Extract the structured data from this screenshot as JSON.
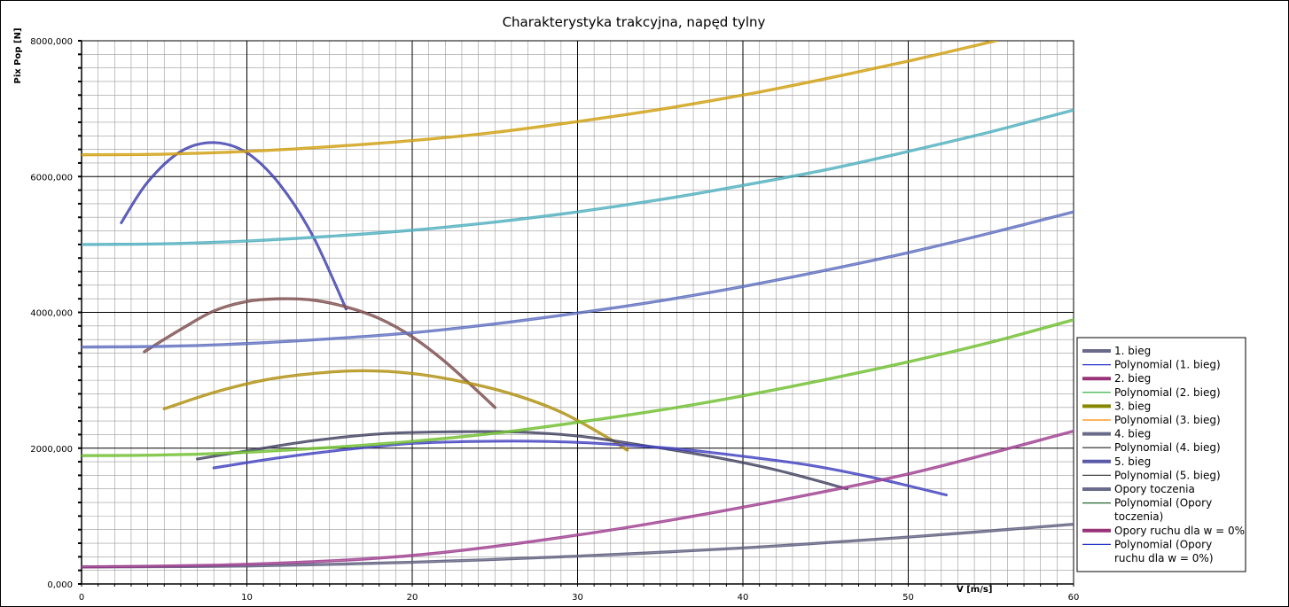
{
  "chart_data": {
    "type": "line",
    "title": "Charakterystyka trakcyjna, napęd tylny",
    "xlabel": "V [m/s]",
    "ylabel": "Pix Pop [N]",
    "xlim": [
      0,
      60
    ],
    "ylim": [
      0,
      8000
    ],
    "x_ticks": [
      0,
      10,
      20,
      30,
      40,
      50,
      60
    ],
    "y_ticks": [
      0,
      2000,
      4000,
      6000,
      8000
    ],
    "x_tick_labels": [
      "0",
      "10",
      "20",
      "30",
      "40",
      "50",
      "60"
    ],
    "y_tick_labels": [
      "0,000",
      "2000,000",
      "4000,000",
      "6000,000",
      "8000,000"
    ],
    "grid": true,
    "minor_grid": true,
    "legend_position": "right",
    "series": [
      {
        "name": "1. bieg",
        "color": "#3333aa",
        "width": 2.2,
        "x": [
          2.4,
          4,
          6,
          8,
          10,
          12,
          14,
          16
        ],
        "y": [
          5320,
          5920,
          6370,
          6500,
          6350,
          5880,
          5120,
          4050
        ]
      },
      {
        "name": "2. bieg",
        "color": "#774444",
        "width": 2.5,
        "x": [
          3.8,
          6,
          8,
          10,
          12,
          14,
          16,
          18,
          20,
          22,
          24,
          25
        ],
        "y": [
          3420,
          3750,
          4020,
          4160,
          4200,
          4180,
          4080,
          3910,
          3640,
          3270,
          2830,
          2600
        ]
      },
      {
        "name": "3. bieg",
        "color": "#aa8800",
        "width": 2.5,
        "x": [
          5,
          8,
          11,
          14,
          17,
          20,
          23,
          26,
          29,
          32,
          33
        ],
        "y": [
          2580,
          2820,
          3000,
          3100,
          3140,
          3100,
          2980,
          2800,
          2530,
          2130,
          1970
        ]
      },
      {
        "name": "4. bieg",
        "color": "#333355",
        "width": 2.2,
        "x": [
          7,
          10,
          14,
          18,
          22,
          26,
          30,
          34,
          38,
          42,
          46.3
        ],
        "y": [
          1840,
          1960,
          2110,
          2210,
          2240,
          2240,
          2180,
          2040,
          1880,
          1680,
          1400
        ]
      },
      {
        "name": "5. bieg",
        "color": "#3333bb",
        "width": 2.2,
        "x": [
          8,
          12,
          16,
          20,
          24,
          28,
          32,
          36,
          40,
          44,
          48,
          52.3
        ],
        "y": [
          1710,
          1860,
          1980,
          2070,
          2100,
          2100,
          2060,
          1990,
          1880,
          1750,
          1560,
          1310
        ]
      },
      {
        "name": "Opory toczenia",
        "color": "#555577",
        "width": 2.5,
        "x": [
          0,
          10,
          20,
          30,
          40,
          50,
          60
        ],
        "y": [
          250,
          265,
          320,
          410,
          530,
          690,
          880
        ]
      },
      {
        "name": "Opory ruchu dla w = 0%",
        "color": "#993388",
        "width": 2.5,
        "x": [
          0,
          10,
          20,
          30,
          40,
          50,
          60
        ],
        "y": [
          250,
          290,
          420,
          720,
          1130,
          1620,
          2250
        ]
      },
      {
        "name": "",
        "color": "#cc9900",
        "width": 2.5,
        "x": [
          0,
          5,
          10,
          15,
          20,
          25,
          30,
          35,
          40,
          45,
          50,
          55.3
        ],
        "y": [
          6320,
          6330,
          6370,
          6440,
          6530,
          6650,
          6810,
          6990,
          7200,
          7440,
          7700,
          8000
        ]
      },
      {
        "name": "",
        "color": "#44aabb",
        "width": 2.5,
        "x": [
          0,
          5,
          10,
          15,
          20,
          25,
          30,
          35,
          40,
          45,
          50,
          55,
          60
        ],
        "y": [
          5000,
          5010,
          5050,
          5120,
          5210,
          5330,
          5480,
          5660,
          5870,
          6100,
          6370,
          6660,
          6980
        ]
      },
      {
        "name": "",
        "color": "#5566bb",
        "width": 2.5,
        "x": [
          0,
          5,
          10,
          15,
          20,
          25,
          30,
          35,
          40,
          45,
          50,
          55,
          60
        ],
        "y": [
          3490,
          3500,
          3540,
          3610,
          3700,
          3830,
          3990,
          4170,
          4380,
          4620,
          4880,
          5170,
          5480
        ]
      },
      {
        "name": "",
        "color": "#66bb22",
        "width": 2.5,
        "x": [
          0,
          5,
          10,
          15,
          20,
          25,
          30,
          35,
          40,
          45,
          50,
          55,
          60
        ],
        "y": [
          1890,
          1900,
          1940,
          2010,
          2100,
          2220,
          2380,
          2560,
          2770,
          3010,
          3270,
          3560,
          3890
        ]
      }
    ],
    "legend": [
      {
        "label": "1. bieg",
        "color": "#6a6a8a",
        "thick": true
      },
      {
        "label": "Polynomial (1. bieg)",
        "color": "#2233cc",
        "thick": false
      },
      {
        "label": "2. bieg",
        "color": "#993377",
        "thick": true
      },
      {
        "label": "Polynomial (2. bieg)",
        "color": "#22aa33",
        "thick": false
      },
      {
        "label": "3. bieg",
        "color": "#888800",
        "thick": true
      },
      {
        "label": "Polynomial (3. bieg)",
        "color": "#ff8800",
        "thick": false
      },
      {
        "label": "4. bieg",
        "color": "#6a6a8a",
        "thick": true
      },
      {
        "label": "Polynomial (4. bieg)",
        "color": "#222222",
        "thick": false
      },
      {
        "label": "5. bieg",
        "color": "#5a5aaa",
        "thick": true
      },
      {
        "label": "Polynomial (5. bieg)",
        "color": "#444444",
        "thick": false
      },
      {
        "label": "Opory toczenia",
        "color": "#6a6a8a",
        "thick": true
      },
      {
        "label": "Polynomial (Opory toczenia)",
        "color": "#226633",
        "thick": false
      },
      {
        "label": "Opory ruchu dla w = 0%",
        "color": "#993377",
        "thick": true
      },
      {
        "label": "Polynomial (Opory ruchu dla w = 0%)",
        "color": "#2233cc",
        "thick": false
      }
    ]
  }
}
